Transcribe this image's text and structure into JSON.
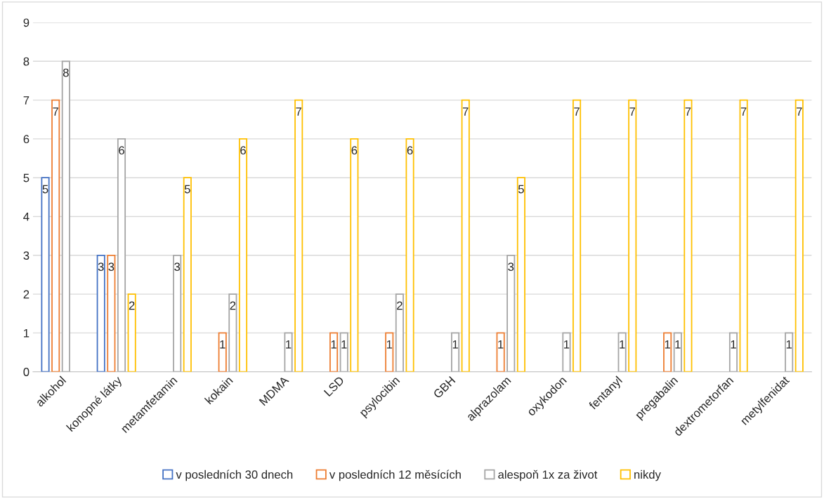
{
  "chart_data": {
    "type": "bar",
    "categories": [
      "alkohol",
      "konopné látky",
      "metamfetamin",
      "kokain",
      "MDMA",
      "LSD",
      "psylocibin",
      "GBH",
      "alprazolam",
      "oxykodon",
      "fentanyl",
      "pregabalin",
      "dextrometorfan",
      "metylfenidat"
    ],
    "series": [
      {
        "name": "v posledních 30 dnech",
        "color": "#4472c4",
        "values": [
          5,
          3,
          0,
          0,
          0,
          0,
          0,
          0,
          0,
          0,
          0,
          0,
          0,
          0
        ],
        "value_labels": [
          "5",
          "3",
          null,
          null,
          null,
          null,
          null,
          null,
          null,
          null,
          null,
          null,
          null,
          null
        ]
      },
      {
        "name": "v posledních 12 měsících",
        "color": "#ed7d31",
        "values": [
          7,
          3,
          0,
          1,
          0,
          1,
          1,
          0,
          1,
          0,
          0,
          1,
          0,
          0
        ],
        "value_labels": [
          "7",
          "3",
          null,
          "1",
          null,
          "1",
          "1",
          null,
          "1",
          null,
          null,
          "1",
          null,
          null
        ]
      },
      {
        "name": "alespoň 1x za život",
        "color": "#a5a5a5",
        "values": [
          8,
          6,
          3,
          2,
          1,
          1,
          2,
          1,
          3,
          1,
          1,
          1,
          1,
          1
        ],
        "value_labels": [
          "8",
          "6",
          "3",
          "2",
          "1",
          "1",
          "2",
          "1",
          "3",
          "1",
          "1",
          "1",
          "1",
          "1"
        ]
      },
      {
        "name": "nikdy",
        "color": "#ffc000",
        "values": [
          0,
          2,
          5,
          6,
          7,
          6,
          6,
          7,
          5,
          7,
          7,
          7,
          7,
          7
        ],
        "value_labels": [
          null,
          "2",
          "5",
          "6",
          "7",
          "6",
          "6",
          "7",
          "5",
          "7",
          "7",
          "7",
          "7",
          "7"
        ]
      }
    ],
    "ylim": [
      0,
      9
    ],
    "yticks": [
      0,
      1,
      2,
      3,
      4,
      5,
      6,
      7,
      8,
      9
    ],
    "grid": "y",
    "legend": "bottom"
  }
}
